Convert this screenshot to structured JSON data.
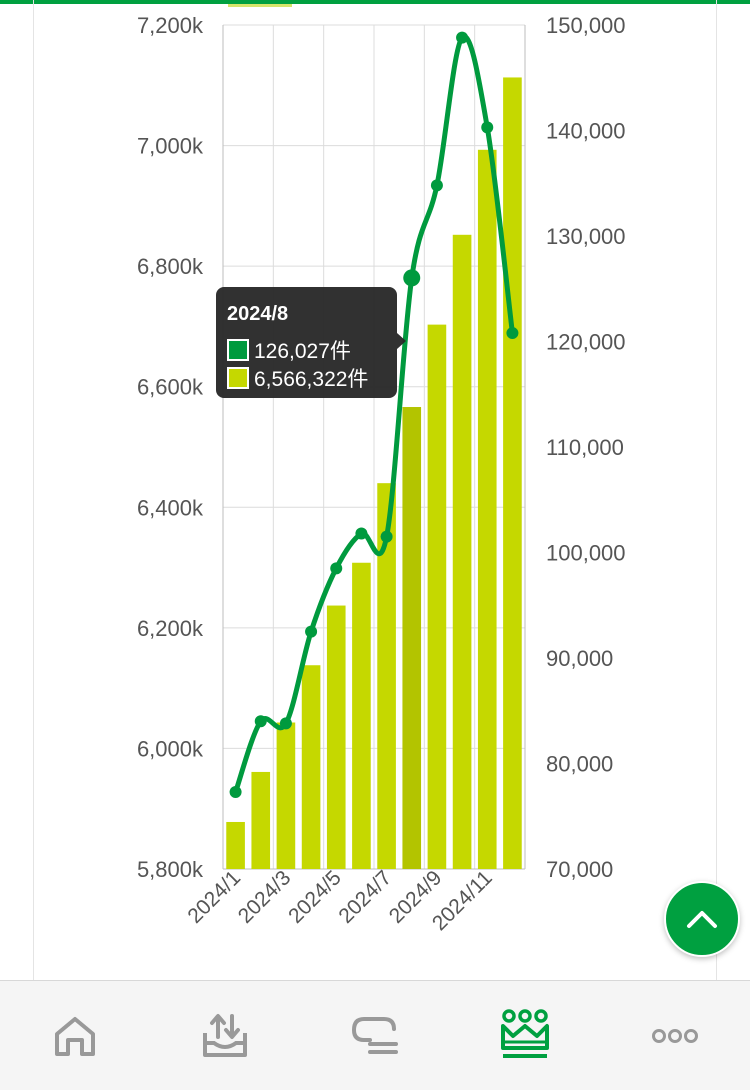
{
  "chart_data": {
    "type": "bar+line",
    "categories": [
      "2024/1",
      "2024/2",
      "2024/3",
      "2024/4",
      "2024/5",
      "2024/6",
      "2024/7",
      "2024/8",
      "2024/9",
      "2024/10",
      "2024/11",
      "2024/12"
    ],
    "x_tick_labels": [
      "2024/1",
      "2024/3",
      "2024/5",
      "2024/7",
      "2024/9",
      "2024/11"
    ],
    "series": [
      {
        "type": "line",
        "axis": "right",
        "color": "#009a3e",
        "values": [
          77300,
          84000,
          83800,
          92500,
          98500,
          101800,
          101500,
          126027,
          134800,
          148800,
          140300,
          120800
        ]
      },
      {
        "type": "bar",
        "axis": "left",
        "color": "#c5d800",
        "highlight_color": "#b3c400",
        "values": [
          5878000,
          5961000,
          6043000,
          6138000,
          6237000,
          6308000,
          6440000,
          6566322,
          6703000,
          6852000,
          6993000,
          7113000
        ]
      }
    ],
    "left_axis": {
      "ylim": [
        5800000,
        7200000
      ],
      "ticks": [
        "5,800k",
        "6,000k",
        "6,200k",
        "6,400k",
        "6,600k",
        "6,800k",
        "7,000k",
        "7,200k"
      ]
    },
    "right_axis": {
      "ylim": [
        70000,
        150000
      ],
      "ticks": [
        "70,000",
        "80,000",
        "90,000",
        "100,000",
        "110,000",
        "120,000",
        "130,000",
        "140,000",
        "150,000"
      ]
    },
    "grid": true,
    "highlighted_index": 7
  },
  "tooltip": {
    "title": "2024/8",
    "rows": [
      {
        "color": "#009a3e",
        "text": "126,027件"
      },
      {
        "color": "#c5d800",
        "text": "6,566,322件"
      }
    ]
  },
  "nav": {
    "items": [
      {
        "icon": "home-icon",
        "active": false
      },
      {
        "icon": "upload-tray-icon",
        "active": false
      },
      {
        "icon": "chat-list-icon",
        "active": false
      },
      {
        "icon": "ranking-crown-icon",
        "active": true
      },
      {
        "icon": "more-icon",
        "active": false
      }
    ],
    "active_color": "#00a040",
    "inactive_color": "#999999"
  }
}
